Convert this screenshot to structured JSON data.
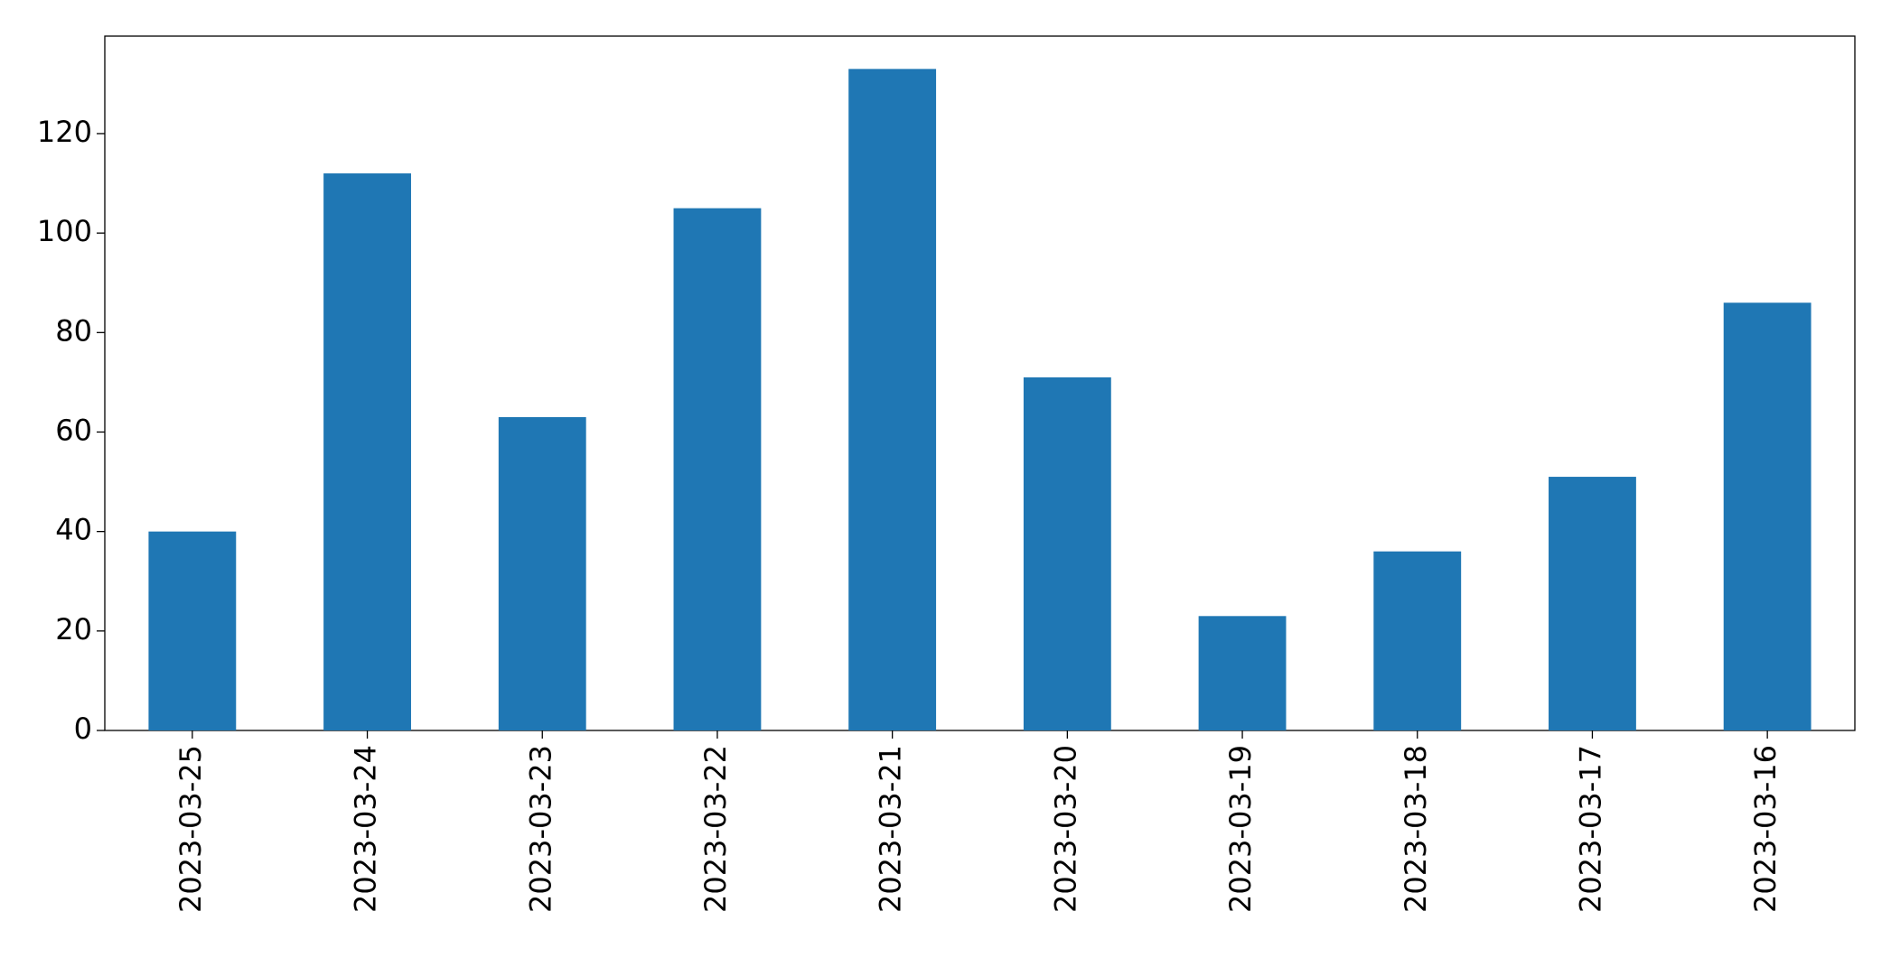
{
  "chart_data": {
    "type": "bar",
    "categories": [
      "2023-03-25",
      "2023-03-24",
      "2023-03-23",
      "2023-03-22",
      "2023-03-21",
      "2023-03-20",
      "2023-03-19",
      "2023-03-18",
      "2023-03-17",
      "2023-03-16"
    ],
    "values": [
      40,
      112,
      63,
      105,
      133,
      71,
      23,
      36,
      51,
      86
    ],
    "color": "#1f77b4",
    "ylim": [
      0,
      139.6
    ],
    "yticks": [
      0,
      20,
      40,
      60,
      80,
      100,
      120
    ],
    "grid": false
  }
}
